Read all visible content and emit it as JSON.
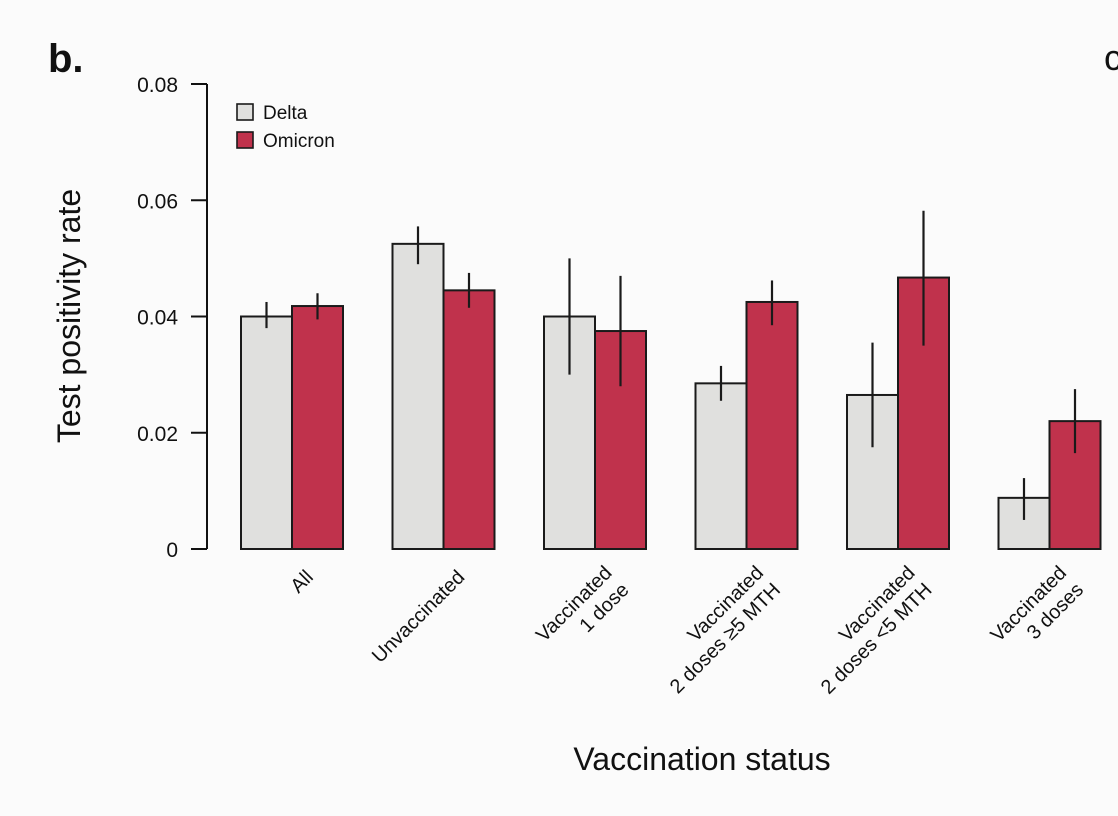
{
  "figure": {
    "panel_label": "b.",
    "next_panel_glyph": "c"
  },
  "colors": {
    "delta": "#e0e0de",
    "omicron": "#c0324c",
    "axis": "#111111",
    "background": "#fbfbfb"
  },
  "chart_data": {
    "type": "bar",
    "title": "",
    "xlabel": "Vaccination status",
    "ylabel": "Test positivity rate",
    "ylim": [
      0,
      0.08
    ],
    "yticks": [
      0,
      0.02,
      0.04,
      0.06,
      0.08
    ],
    "ytick_labels": [
      "0",
      "0.02",
      "0.04",
      "0.06",
      "0.08"
    ],
    "grid": false,
    "legend_position": "top-left",
    "categories": [
      [
        "All"
      ],
      [
        "Unvaccinated"
      ],
      [
        "Vaccinated",
        "1 dose"
      ],
      [
        "Vaccinated",
        "2 doses ≥5 MTH"
      ],
      [
        "Vaccinated",
        "2 doses <5 MTH"
      ],
      [
        "Vaccinated",
        "3 doses"
      ]
    ],
    "series": [
      {
        "name": "Delta",
        "color": "#e0e0de",
        "values": [
          0.04,
          0.0525,
          0.04,
          0.0285,
          0.0265,
          0.0088
        ],
        "error_low": [
          0.038,
          0.049,
          0.03,
          0.0255,
          0.0175,
          0.005
        ],
        "error_high": [
          0.0425,
          0.0555,
          0.05,
          0.0315,
          0.0355,
          0.0122
        ]
      },
      {
        "name": "Omicron",
        "color": "#c0324c",
        "values": [
          0.0418,
          0.0445,
          0.0375,
          0.0425,
          0.0467,
          0.022
        ],
        "error_low": [
          0.0395,
          0.0415,
          0.028,
          0.0385,
          0.035,
          0.0165
        ],
        "error_high": [
          0.044,
          0.0475,
          0.047,
          0.0462,
          0.0582,
          0.0275
        ]
      }
    ]
  }
}
